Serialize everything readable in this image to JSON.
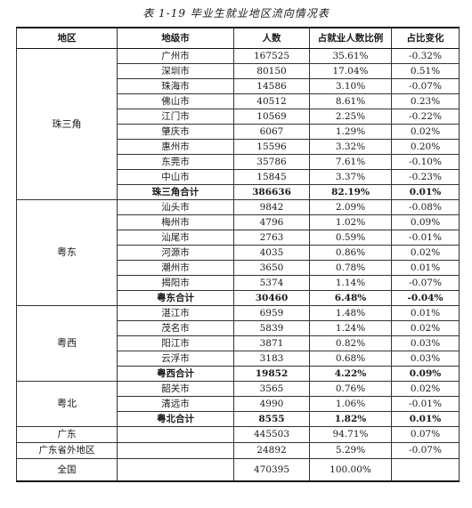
{
  "caption": "表 1-19   毕业生就业地区流向情况表",
  "headers": [
    "地区",
    "地级市",
    "人数",
    "占就业人数比例",
    "占比变化"
  ],
  "groups": [
    {
      "region": "珠三角",
      "rows": [
        [
          "广州市",
          "167525",
          "35.61%",
          "-0.32%"
        ],
        [
          "深圳市",
          "80150",
          "17.04%",
          "0.51%"
        ],
        [
          "珠海市",
          "14586",
          "3.10%",
          "-0.07%"
        ],
        [
          "佛山市",
          "40512",
          "8.61%",
          "0.23%"
        ],
        [
          "江门市",
          "10569",
          "2.25%",
          "-0.22%"
        ],
        [
          "肇庆市",
          "6067",
          "1.29%",
          "0.02%"
        ],
        [
          "惠州市",
          "15596",
          "3.32%",
          "0.20%"
        ],
        [
          "东莞市",
          "35786",
          "7.61%",
          "-0.10%"
        ],
        [
          "中山市",
          "15845",
          "3.37%",
          "-0.23%"
        ]
      ],
      "subtotal": [
        "珠三角合计",
        "386636",
        "82.19%",
        "0.01%"
      ]
    },
    {
      "region": "粤东",
      "rows": [
        [
          "汕头市",
          "9842",
          "2.09%",
          "-0.08%"
        ],
        [
          "梅州市",
          "4796",
          "1.02%",
          "0.09%"
        ],
        [
          "汕尾市",
          "2763",
          "0.59%",
          "-0.01%"
        ],
        [
          "河源市",
          "4035",
          "0.86%",
          "0.02%"
        ],
        [
          "潮州市",
          "3650",
          "0.78%",
          "0.01%"
        ],
        [
          "揭阳市",
          "5374",
          "1.14%",
          "-0.07%"
        ]
      ],
      "subtotal": [
        "粤东合计",
        "30460",
        "6.48%",
        "-0.04%"
      ]
    },
    {
      "region": "粤西",
      "rows": [
        [
          "湛江市",
          "6959",
          "1.48%",
          "0.01%"
        ],
        [
          "茂名市",
          "5839",
          "1.24%",
          "0.02%"
        ],
        [
          "阳江市",
          "3871",
          "0.82%",
          "0.03%"
        ],
        [
          "云浮市",
          "3183",
          "0.68%",
          "0.03%"
        ]
      ],
      "subtotal": [
        "粤西合计",
        "19852",
        "4.22%",
        "0.09%"
      ]
    },
    {
      "region": "粤北",
      "rows": [
        [
          "韶关市",
          "3565",
          "0.76%",
          "0.02%"
        ],
        [
          "清远市",
          "4990",
          "1.06%",
          "-0.01%"
        ]
      ],
      "subtotal": [
        "粤北合计",
        "8555",
        "1.82%",
        "0.01%"
      ]
    }
  ],
  "summary": [
    [
      "广东",
      "",
      "445503",
      "94.71%",
      "0.07%"
    ],
    [
      "广东省外地区",
      "",
      "24892",
      "5.29%",
      "-0.07%"
    ]
  ],
  "total": [
    "全国",
    "",
    "470395",
    "100.00%",
    ""
  ]
}
